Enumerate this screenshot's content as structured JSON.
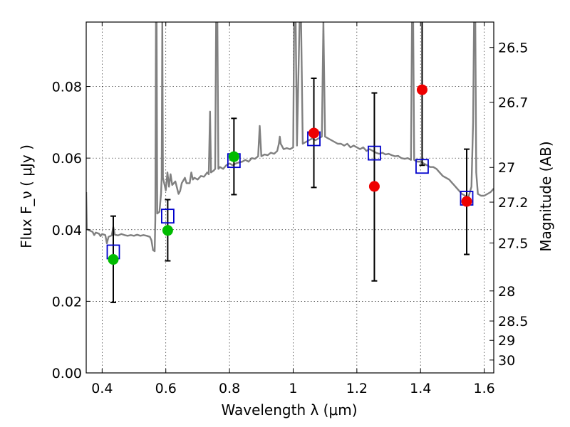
{
  "chart_data": {
    "type": "scatter",
    "title": "",
    "xlabel": "Wavelength  λ (μm)",
    "ylabel": "Flux  F_ν  ( μJy )",
    "y2label": "Magnitude (AB)",
    "xlim": [
      0.35,
      1.63
    ],
    "ylim": [
      0.0,
      0.098
    ],
    "grid": true,
    "x_ticks": [
      0.4,
      0.6,
      0.8,
      1.0,
      1.2,
      1.4,
      1.6
    ],
    "x_tick_labels": [
      "0.4",
      "0.6",
      "0.8",
      "1",
      "1.2",
      "1.4",
      "1.6"
    ],
    "y_ticks": [
      0.0,
      0.02,
      0.04,
      0.06,
      0.08
    ],
    "y_tick_labels": [
      "0.00",
      "0.02",
      "0.04",
      "0.06",
      "0.08"
    ],
    "y2_ticks": [
      {
        "label": "26.5",
        "flux": 0.0909
      },
      {
        "label": "26.7",
        "flux": 0.0756
      },
      {
        "label": "27",
        "flux": 0.0574
      },
      {
        "label": "27.2",
        "flux": 0.0477
      },
      {
        "label": "27.5",
        "flux": 0.0363
      },
      {
        "label": "28",
        "flux": 0.0229
      },
      {
        "label": "28.5",
        "flux": 0.0145
      },
      {
        "label": "29",
        "flux": 0.0091
      },
      {
        "label": "30",
        "flux": 0.0036
      }
    ],
    "colors": {
      "model": "#808080",
      "model_photometry": "#0000cc",
      "observed_green": "#00bb00",
      "observed_red": "#ee0000",
      "errorbar": "#000000"
    },
    "observed_points": [
      {
        "x": 0.435,
        "y": 0.0317,
        "err_low": 0.0197,
        "err_high": 0.0438,
        "color": "green"
      },
      {
        "x": 0.606,
        "y": 0.0398,
        "err_low": 0.0313,
        "err_high": 0.0484,
        "color": "green"
      },
      {
        "x": 0.814,
        "y": 0.0604,
        "err_low": 0.0498,
        "err_high": 0.0711,
        "color": "green"
      },
      {
        "x": 1.065,
        "y": 0.067,
        "err_low": 0.0518,
        "err_high": 0.0823,
        "color": "red"
      },
      {
        "x": 1.255,
        "y": 0.0521,
        "err_low": 0.0257,
        "err_high": 0.0782,
        "color": "red"
      },
      {
        "x": 1.405,
        "y": 0.0791,
        "err_low": 0.058,
        "err_high": 0.098,
        "color": "red"
      },
      {
        "x": 1.545,
        "y": 0.0479,
        "err_low": 0.0331,
        "err_high": 0.0625,
        "color": "red"
      }
    ],
    "model_photometry": [
      {
        "x": 0.435,
        "y": 0.0338
      },
      {
        "x": 0.606,
        "y": 0.0438
      },
      {
        "x": 0.814,
        "y": 0.0593
      },
      {
        "x": 1.065,
        "y": 0.0654
      },
      {
        "x": 1.255,
        "y": 0.0614
      },
      {
        "x": 1.405,
        "y": 0.0577
      },
      {
        "x": 1.545,
        "y": 0.0488
      }
    ],
    "model_spectrum": [
      [
        0.35,
        0.0505
      ],
      [
        0.352,
        0.0402
      ],
      [
        0.36,
        0.0398
      ],
      [
        0.37,
        0.0394
      ],
      [
        0.375,
        0.0385
      ],
      [
        0.38,
        0.0392
      ],
      [
        0.39,
        0.0389
      ],
      [
        0.395,
        0.0382
      ],
      [
        0.4,
        0.0388
      ],
      [
        0.41,
        0.0385
      ],
      [
        0.415,
        0.0362
      ],
      [
        0.42,
        0.038
      ],
      [
        0.43,
        0.0384
      ],
      [
        0.435,
        0.0408
      ],
      [
        0.44,
        0.0386
      ],
      [
        0.45,
        0.0384
      ],
      [
        0.46,
        0.0388
      ],
      [
        0.47,
        0.0385
      ],
      [
        0.48,
        0.0383
      ],
      [
        0.49,
        0.0385
      ],
      [
        0.5,
        0.0383
      ],
      [
        0.51,
        0.0386
      ],
      [
        0.52,
        0.0383
      ],
      [
        0.53,
        0.0385
      ],
      [
        0.54,
        0.0383
      ],
      [
        0.55,
        0.038
      ],
      [
        0.555,
        0.037
      ],
      [
        0.56,
        0.0343
      ],
      [
        0.565,
        0.034
      ],
      [
        0.567,
        0.043
      ],
      [
        0.569,
        0.098
      ],
      [
        0.571,
        0.098
      ],
      [
        0.573,
        0.0445
      ],
      [
        0.58,
        0.045
      ],
      [
        0.585,
        0.05
      ],
      [
        0.587,
        0.0545
      ],
      [
        0.589,
        0.098
      ],
      [
        0.591,
        0.0545
      ],
      [
        0.6,
        0.051
      ],
      [
        0.605,
        0.056
      ],
      [
        0.61,
        0.052
      ],
      [
        0.615,
        0.0555
      ],
      [
        0.62,
        0.0525
      ],
      [
        0.63,
        0.0535
      ],
      [
        0.64,
        0.05
      ],
      [
        0.645,
        0.0508
      ],
      [
        0.65,
        0.053
      ],
      [
        0.66,
        0.0545
      ],
      [
        0.665,
        0.053
      ],
      [
        0.675,
        0.053
      ],
      [
        0.68,
        0.056
      ],
      [
        0.685,
        0.054
      ],
      [
        0.69,
        0.0545
      ],
      [
        0.7,
        0.054
      ],
      [
        0.71,
        0.055
      ],
      [
        0.72,
        0.0548
      ],
      [
        0.73,
        0.056
      ],
      [
        0.735,
        0.0555
      ],
      [
        0.739,
        0.073
      ],
      [
        0.742,
        0.056
      ],
      [
        0.75,
        0.0565
      ],
      [
        0.755,
        0.057
      ],
      [
        0.758,
        0.098
      ],
      [
        0.762,
        0.098
      ],
      [
        0.765,
        0.057
      ],
      [
        0.77,
        0.0575
      ],
      [
        0.78,
        0.057
      ],
      [
        0.79,
        0.058
      ],
      [
        0.8,
        0.0585
      ],
      [
        0.81,
        0.058
      ],
      [
        0.82,
        0.0585
      ],
      [
        0.83,
        0.0588
      ],
      [
        0.84,
        0.059
      ],
      [
        0.85,
        0.0595
      ],
      [
        0.86,
        0.059
      ],
      [
        0.87,
        0.06
      ],
      [
        0.88,
        0.0598
      ],
      [
        0.89,
        0.0605
      ],
      [
        0.895,
        0.069
      ],
      [
        0.9,
        0.0605
      ],
      [
        0.91,
        0.061
      ],
      [
        0.92,
        0.0608
      ],
      [
        0.93,
        0.0615
      ],
      [
        0.94,
        0.0612
      ],
      [
        0.95,
        0.062
      ],
      [
        0.955,
        0.064
      ],
      [
        0.958,
        0.066
      ],
      [
        0.961,
        0.064
      ],
      [
        0.97,
        0.0625
      ],
      [
        0.98,
        0.0628
      ],
      [
        0.99,
        0.0625
      ],
      [
        1.0,
        0.063
      ],
      [
        1.003,
        0.098
      ],
      [
        1.008,
        0.098
      ],
      [
        1.012,
        0.0635
      ],
      [
        1.02,
        0.098
      ],
      [
        1.025,
        0.098
      ],
      [
        1.03,
        0.064
      ],
      [
        1.04,
        0.0645
      ],
      [
        1.05,
        0.065
      ],
      [
        1.06,
        0.0655
      ],
      [
        1.07,
        0.065
      ],
      [
        1.08,
        0.0655
      ],
      [
        1.09,
        0.066
      ],
      [
        1.095,
        0.098
      ],
      [
        1.1,
        0.066
      ],
      [
        1.11,
        0.0655
      ],
      [
        1.12,
        0.065
      ],
      [
        1.13,
        0.0645
      ],
      [
        1.14,
        0.064
      ],
      [
        1.15,
        0.064
      ],
      [
        1.16,
        0.0635
      ],
      [
        1.17,
        0.064
      ],
      [
        1.18,
        0.063
      ],
      [
        1.19,
        0.0635
      ],
      [
        1.2,
        0.063
      ],
      [
        1.21,
        0.0625
      ],
      [
        1.22,
        0.063
      ],
      [
        1.23,
        0.062
      ],
      [
        1.24,
        0.0625
      ],
      [
        1.25,
        0.062
      ],
      [
        1.26,
        0.0615
      ],
      [
        1.27,
        0.0612
      ],
      [
        1.28,
        0.0615
      ],
      [
        1.29,
        0.061
      ],
      [
        1.3,
        0.0612
      ],
      [
        1.31,
        0.0608
      ],
      [
        1.32,
        0.0605
      ],
      [
        1.33,
        0.0606
      ],
      [
        1.34,
        0.06
      ],
      [
        1.35,
        0.0598
      ],
      [
        1.36,
        0.06
      ],
      [
        1.37,
        0.0595
      ],
      [
        1.373,
        0.098
      ],
      [
        1.377,
        0.098
      ],
      [
        1.38,
        0.0595
      ],
      [
        1.39,
        0.059
      ],
      [
        1.4,
        0.059
      ],
      [
        1.41,
        0.0585
      ],
      [
        1.42,
        0.058
      ],
      [
        1.43,
        0.0575
      ],
      [
        1.44,
        0.0575
      ],
      [
        1.45,
        0.057
      ],
      [
        1.46,
        0.056
      ],
      [
        1.47,
        0.055
      ],
      [
        1.48,
        0.0545
      ],
      [
        1.49,
        0.054
      ],
      [
        1.5,
        0.053
      ],
      [
        1.51,
        0.052
      ],
      [
        1.52,
        0.051
      ],
      [
        1.53,
        0.05
      ],
      [
        1.54,
        0.0495
      ],
      [
        1.55,
        0.049
      ],
      [
        1.56,
        0.052
      ],
      [
        1.565,
        0.07
      ],
      [
        1.568,
        0.098
      ],
      [
        1.572,
        0.098
      ],
      [
        1.575,
        0.056
      ],
      [
        1.58,
        0.05
      ],
      [
        1.59,
        0.0495
      ],
      [
        1.6,
        0.0495
      ],
      [
        1.61,
        0.05
      ],
      [
        1.62,
        0.0505
      ],
      [
        1.63,
        0.0515
      ]
    ]
  }
}
